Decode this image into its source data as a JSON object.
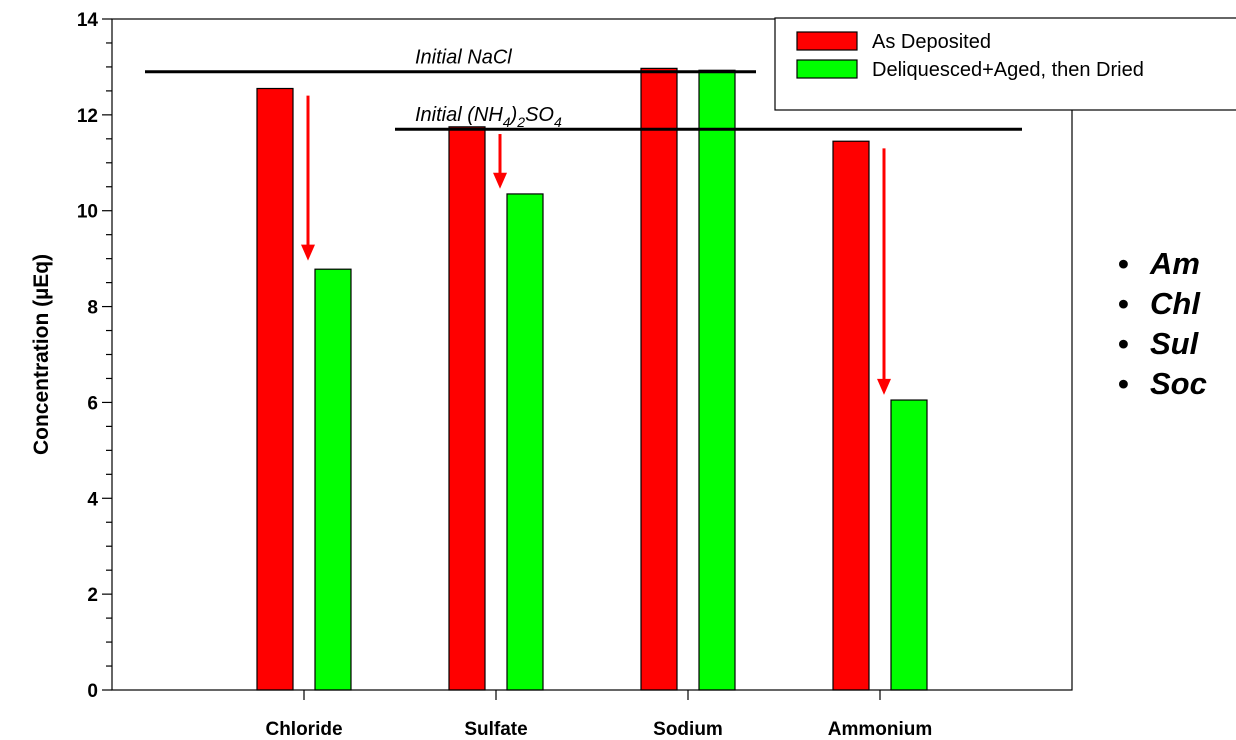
{
  "chart_data": {
    "type": "bar",
    "categories": [
      "Chloride",
      "Sulfate",
      "Sodium",
      "Ammonium"
    ],
    "series": [
      {
        "name": "As Deposited",
        "color": "#ff0000",
        "values": [
          12.55,
          11.75,
          12.97,
          11.45
        ]
      },
      {
        "name": "Deliquesced+Aged, then Dried",
        "color": "#00ff00",
        "values": [
          8.78,
          10.35,
          12.93,
          6.05
        ]
      }
    ],
    "ylabel": "Concentration (µEq)",
    "ylim": [
      0,
      14
    ],
    "yticks": [
      0,
      2,
      4,
      6,
      8,
      10,
      12,
      14
    ],
    "reference_lines": [
      {
        "label": "Initial NaCl",
        "value": 12.9
      },
      {
        "label": "Initial (NH4)2SO4",
        "label_main": "Initial (NH",
        "sub1": "4",
        "label_mid": ")",
        "sub2": "2",
        "label_end": "SO",
        "sub3": "4",
        "value": 11.7
      }
    ],
    "arrows": [
      {
        "category": "Chloride",
        "from": 12.4,
        "to": 9.0
      },
      {
        "category": "Sulfate",
        "from": 11.6,
        "to": 10.5
      },
      {
        "category": "Ammonium",
        "from": 11.3,
        "to": 6.2
      }
    ],
    "legend_position": "top-right",
    "grid": false
  },
  "bullets": [
    "Am",
    "Chl",
    "Sul",
    "Soc"
  ]
}
